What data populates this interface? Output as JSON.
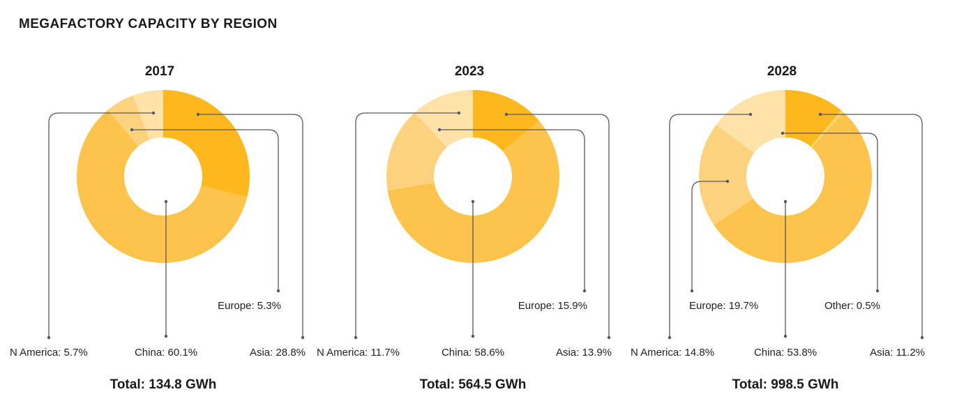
{
  "title": "MEGAFACTORY CAPACITY BY REGION",
  "colors": {
    "China": "#fdc44d",
    "Asia": "#fcb81c",
    "Europe": "#fdd27e",
    "N America": "#fee2a8",
    "Other": "#fed778"
  },
  "chart_data": [
    {
      "type": "pie",
      "title": "2017",
      "total_label": "Total: 134.8 GWh",
      "slices": [
        {
          "name": "Asia",
          "value": 28.8,
          "label": "Asia: 28.8%"
        },
        {
          "name": "China",
          "value": 60.1,
          "label": "China: 60.1%"
        },
        {
          "name": "Europe",
          "value": 5.3,
          "label": "Europe: 5.3%"
        },
        {
          "name": "N America",
          "value": 5.7,
          "label": "N America: 5.7%"
        }
      ]
    },
    {
      "type": "pie",
      "title": "2023",
      "total_label": "Total: 564.5 GWh",
      "slices": [
        {
          "name": "Asia",
          "value": 13.9,
          "label": "Asia: 13.9%"
        },
        {
          "name": "China",
          "value": 58.6,
          "label": "China: 58.6%"
        },
        {
          "name": "Europe",
          "value": 15.9,
          "label": "Europe: 15.9%"
        },
        {
          "name": "N America",
          "value": 11.7,
          "label": "N America: 11.7%"
        }
      ]
    },
    {
      "type": "pie",
      "title": "2028",
      "total_label": "Total: 998.5 GWh",
      "slices": [
        {
          "name": "Asia",
          "value": 11.2,
          "label": "Asia: 11.2%"
        },
        {
          "name": "Other",
          "value": 0.5,
          "label": "Other: 0.5%"
        },
        {
          "name": "China",
          "value": 53.8,
          "label": "China: 53.8%"
        },
        {
          "name": "Europe",
          "value": 19.7,
          "label": "Europe: 19.7%"
        },
        {
          "name": "N America",
          "value": 14.8,
          "label": "N America: 14.8%"
        }
      ]
    }
  ]
}
